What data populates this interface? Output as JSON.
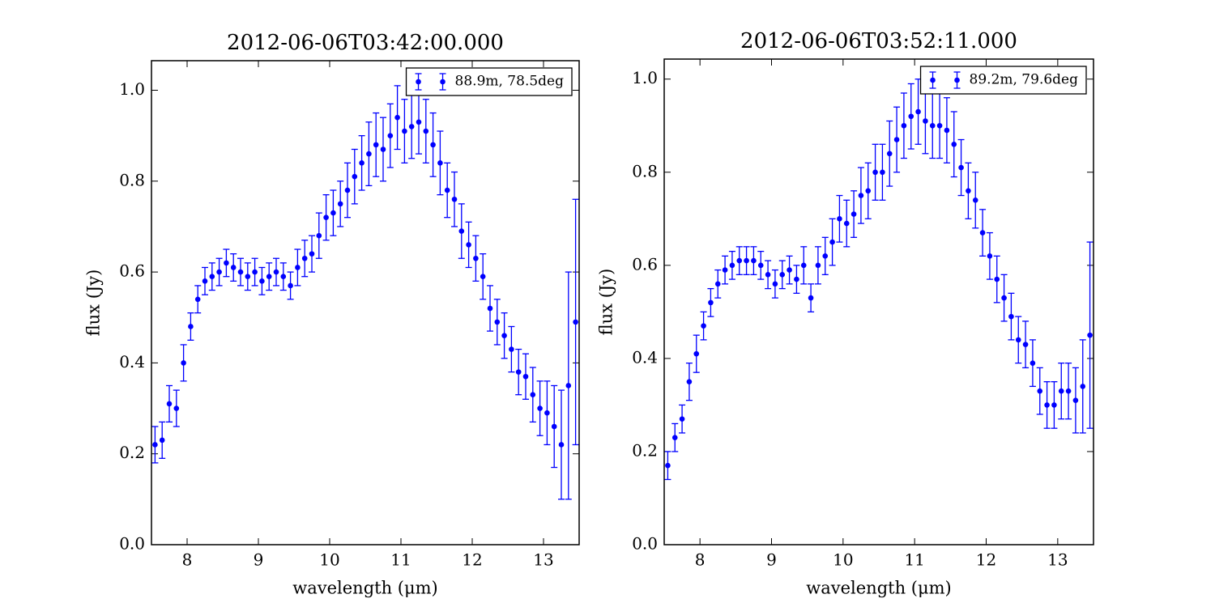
{
  "chart_data": [
    {
      "type": "errorbar",
      "title": "2012-06-06T03:42:00.000",
      "xlabel": "wavelength (μm)",
      "ylabel": "flux (Jy)",
      "x": [
        7.55,
        7.65,
        7.75,
        7.85,
        7.95,
        8.05,
        8.15,
        8.25,
        8.35,
        8.45,
        8.55,
        8.65,
        8.75,
        8.85,
        8.95,
        9.05,
        9.15,
        9.25,
        9.35,
        9.45,
        9.55,
        9.65,
        9.75,
        9.85,
        9.95,
        10.05,
        10.15,
        10.25,
        10.35,
        10.45,
        10.55,
        10.65,
        10.75,
        10.85,
        10.95,
        11.05,
        11.15,
        11.25,
        11.35,
        11.45,
        11.55,
        11.65,
        11.75,
        11.85,
        11.95,
        12.05,
        12.15,
        12.25,
        12.35,
        12.45,
        12.55,
        12.65,
        12.75,
        12.85,
        12.95,
        13.05,
        13.15,
        13.25,
        13.35,
        13.45
      ],
      "series": [
        {
          "name": "88.9m, 78.5deg",
          "color": "#0000ff",
          "values": [
            0.22,
            0.23,
            0.31,
            0.3,
            0.4,
            0.48,
            0.54,
            0.58,
            0.59,
            0.6,
            0.62,
            0.61,
            0.6,
            0.59,
            0.6,
            0.58,
            0.59,
            0.6,
            0.59,
            0.57,
            0.61,
            0.63,
            0.64,
            0.68,
            0.72,
            0.73,
            0.75,
            0.78,
            0.81,
            0.84,
            0.86,
            0.88,
            0.87,
            0.9,
            0.94,
            0.91,
            0.92,
            0.93,
            0.91,
            0.88,
            0.84,
            0.78,
            0.76,
            0.69,
            0.66,
            0.63,
            0.59,
            0.52,
            0.49,
            0.46,
            0.43,
            0.38,
            0.37,
            0.33,
            0.3,
            0.29,
            0.26,
            0.22,
            0.35,
            0.49
          ],
          "errors": [
            0.04,
            0.04,
            0.04,
            0.04,
            0.04,
            0.03,
            0.03,
            0.03,
            0.03,
            0.03,
            0.03,
            0.03,
            0.03,
            0.03,
            0.03,
            0.03,
            0.03,
            0.03,
            0.03,
            0.03,
            0.04,
            0.04,
            0.04,
            0.05,
            0.05,
            0.05,
            0.05,
            0.06,
            0.06,
            0.06,
            0.07,
            0.07,
            0.07,
            0.07,
            0.07,
            0.07,
            0.07,
            0.07,
            0.07,
            0.07,
            0.07,
            0.06,
            0.06,
            0.06,
            0.05,
            0.05,
            0.05,
            0.05,
            0.05,
            0.05,
            0.05,
            0.05,
            0.05,
            0.06,
            0.06,
            0.07,
            0.09,
            0.12,
            0.25,
            0.27
          ]
        }
      ],
      "xlim": [
        7.5,
        13.5
      ],
      "ylim": [
        0,
        1.065
      ],
      "xticks": [
        8,
        9,
        10,
        11,
        12,
        13
      ],
      "yticks": [
        {
          "value": 0,
          "label": "0.0"
        },
        {
          "value": 0.2,
          "label": "0.2"
        },
        {
          "value": 0.4,
          "label": "0.4"
        },
        {
          "value": 0.6,
          "label": "0.6"
        },
        {
          "value": 0.8,
          "label": "0.8"
        },
        {
          "value": 1.0,
          "label": "1.0"
        }
      ],
      "legend": "upper right"
    },
    {
      "type": "errorbar",
      "title": "2012-06-06T03:52:11.000",
      "xlabel": "wavelength (μm)",
      "ylabel": "flux (Jy)",
      "x": [
        7.55,
        7.65,
        7.75,
        7.85,
        7.95,
        8.05,
        8.15,
        8.25,
        8.35,
        8.45,
        8.55,
        8.65,
        8.75,
        8.85,
        8.95,
        9.05,
        9.15,
        9.25,
        9.35,
        9.45,
        9.55,
        9.65,
        9.75,
        9.85,
        9.95,
        10.05,
        10.15,
        10.25,
        10.35,
        10.45,
        10.55,
        10.65,
        10.75,
        10.85,
        10.95,
        11.05,
        11.15,
        11.25,
        11.35,
        11.45,
        11.55,
        11.65,
        11.75,
        11.85,
        11.95,
        12.05,
        12.15,
        12.25,
        12.35,
        12.45,
        12.55,
        12.65,
        12.75,
        12.85,
        12.95,
        13.05,
        13.15,
        13.25,
        13.35,
        13.45
      ],
      "series": [
        {
          "name": "89.2m, 79.6deg",
          "color": "#0000ff",
          "values": [
            0.17,
            0.23,
            0.27,
            0.35,
            0.41,
            0.47,
            0.52,
            0.56,
            0.59,
            0.6,
            0.61,
            0.61,
            0.61,
            0.6,
            0.58,
            0.56,
            0.58,
            0.59,
            0.57,
            0.6,
            0.53,
            0.6,
            0.62,
            0.65,
            0.7,
            0.69,
            0.71,
            0.75,
            0.76,
            0.8,
            0.8,
            0.84,
            0.87,
            0.9,
            0.92,
            0.93,
            0.91,
            0.9,
            0.9,
            0.89,
            0.86,
            0.81,
            0.76,
            0.74,
            0.67,
            0.62,
            0.57,
            0.53,
            0.49,
            0.44,
            0.43,
            0.39,
            0.33,
            0.3,
            0.3,
            0.33,
            0.33,
            0.31,
            0.34,
            0.45
          ],
          "errors": [
            0.03,
            0.03,
            0.03,
            0.04,
            0.04,
            0.03,
            0.03,
            0.03,
            0.03,
            0.03,
            0.03,
            0.03,
            0.03,
            0.03,
            0.03,
            0.03,
            0.03,
            0.03,
            0.03,
            0.04,
            0.03,
            0.04,
            0.04,
            0.05,
            0.05,
            0.05,
            0.05,
            0.06,
            0.06,
            0.06,
            0.06,
            0.07,
            0.07,
            0.07,
            0.07,
            0.07,
            0.07,
            0.07,
            0.07,
            0.07,
            0.07,
            0.06,
            0.06,
            0.06,
            0.05,
            0.05,
            0.05,
            0.05,
            0.05,
            0.05,
            0.05,
            0.05,
            0.05,
            0.05,
            0.05,
            0.06,
            0.06,
            0.07,
            0.1,
            0.2
          ]
        }
      ],
      "xlim": [
        7.5,
        13.5
      ],
      "ylim": [
        0,
        1.043
      ],
      "xticks": [
        8,
        9,
        10,
        11,
        12,
        13
      ],
      "yticks": [
        {
          "value": 0,
          "label": "0.0"
        },
        {
          "value": 0.2,
          "label": "0.2"
        },
        {
          "value": 0.4,
          "label": "0.4"
        },
        {
          "value": 0.6,
          "label": "0.6"
        },
        {
          "value": 0.8,
          "label": "0.8"
        },
        {
          "value": 1.0,
          "label": "1.0"
        }
      ],
      "legend": "upper right"
    }
  ]
}
